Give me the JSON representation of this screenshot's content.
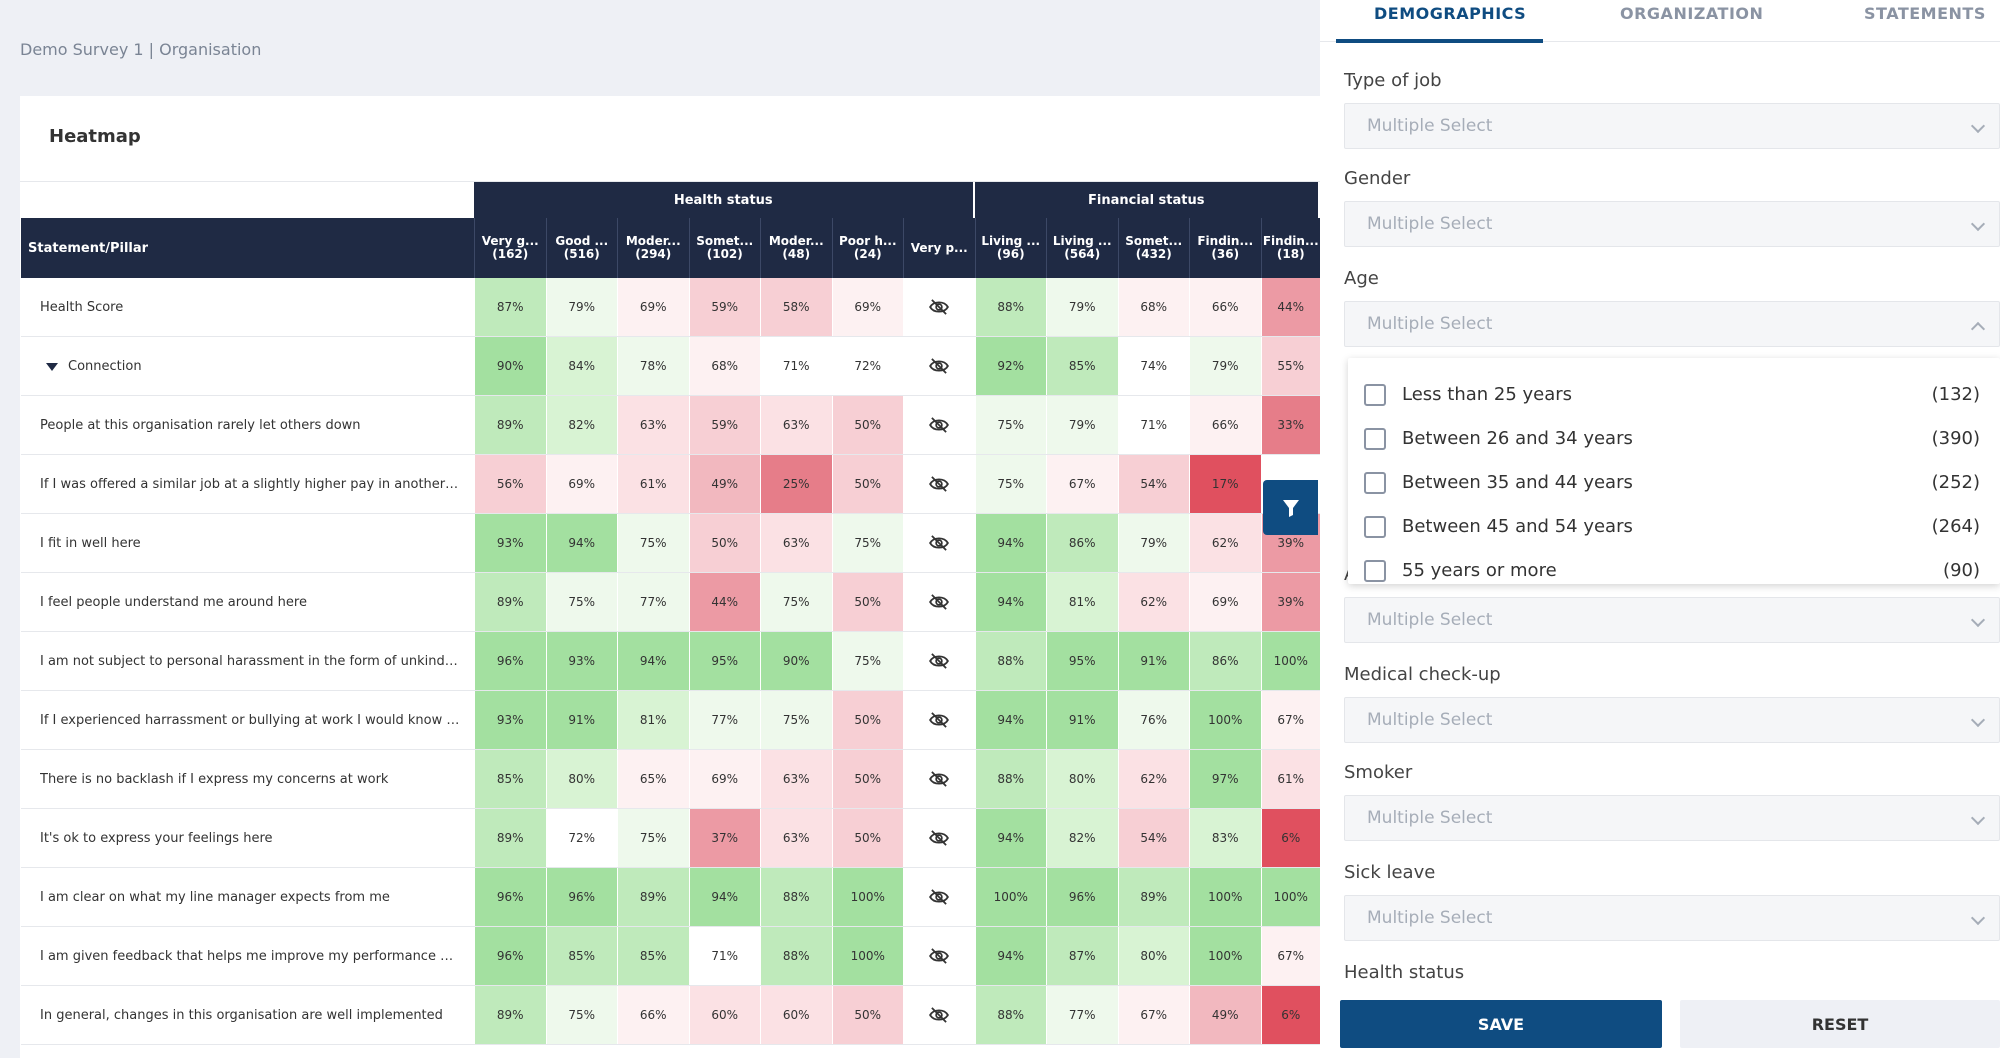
{
  "breadcrumb": "Demo Survey 1 | Organisation",
  "card_title": "Heatmap",
  "table": {
    "statement_header": "Statement/Pillar",
    "groups": [
      {
        "label": "Health status"
      },
      {
        "label": "Financial status"
      }
    ],
    "columns": [
      {
        "name": "Very g...",
        "count": "(162)"
      },
      {
        "name": "Good ...",
        "count": "(516)"
      },
      {
        "name": "Moder...",
        "count": "(294)"
      },
      {
        "name": "Somet...",
        "count": "(102)"
      },
      {
        "name": "Moder...",
        "count": "(48)"
      },
      {
        "name": "Poor h...",
        "count": "(24)"
      },
      {
        "name": "Very p...",
        "count": ""
      },
      {
        "name": "Living ...",
        "count": "(96)"
      },
      {
        "name": "Living ...",
        "count": "(564)"
      },
      {
        "name": "Somet...",
        "count": "(432)"
      },
      {
        "name": "Findin...",
        "count": "(36)"
      },
      {
        "name": "Findin...",
        "count": "(18)"
      }
    ],
    "rows": [
      {
        "label": "Health Score",
        "pillar": false,
        "values": [
          87,
          79,
          69,
          59,
          58,
          69,
          null,
          88,
          79,
          68,
          66,
          44
        ]
      },
      {
        "label": "Connection",
        "pillar": true,
        "values": [
          90,
          84,
          78,
          68,
          71,
          72,
          null,
          92,
          85,
          74,
          79,
          55
        ]
      },
      {
        "label": "People at this organisation rarely let others down",
        "pillar": false,
        "values": [
          89,
          82,
          63,
          59,
          63,
          50,
          null,
          75,
          79,
          71,
          66,
          33
        ]
      },
      {
        "label": "If I was offered a similar job at a slightly higher pay in another orga...",
        "pillar": false,
        "values": [
          56,
          69,
          61,
          49,
          25,
          50,
          null,
          75,
          67,
          54,
          17,
          null
        ]
      },
      {
        "label": "I fit in well here",
        "pillar": false,
        "values": [
          93,
          94,
          75,
          50,
          63,
          75,
          null,
          94,
          86,
          79,
          62,
          39
        ]
      },
      {
        "label": "I feel people understand me around here",
        "pillar": false,
        "values": [
          89,
          75,
          77,
          44,
          75,
          50,
          null,
          94,
          81,
          62,
          69,
          39
        ]
      },
      {
        "label": "I am not subject to personal harassment in the form of unkind wor...",
        "pillar": false,
        "values": [
          96,
          93,
          94,
          95,
          90,
          75,
          null,
          88,
          95,
          91,
          86,
          100
        ]
      },
      {
        "label": "If I experienced harrassment or bullying at work I would know how...",
        "pillar": false,
        "values": [
          93,
          91,
          81,
          77,
          75,
          50,
          null,
          94,
          91,
          76,
          100,
          67
        ]
      },
      {
        "label": "There is no backlash if I express my concerns at work",
        "pillar": false,
        "values": [
          85,
          80,
          65,
          69,
          63,
          50,
          null,
          88,
          80,
          62,
          97,
          61
        ]
      },
      {
        "label": "It's ok to express your feelings here",
        "pillar": false,
        "values": [
          89,
          72,
          75,
          37,
          63,
          50,
          null,
          94,
          82,
          54,
          83,
          6
        ]
      },
      {
        "label": "I am clear on what my line manager expects from me",
        "pillar": false,
        "values": [
          96,
          96,
          89,
          94,
          88,
          100,
          null,
          100,
          96,
          89,
          100,
          100
        ]
      },
      {
        "label": "I am given feedback that helps me improve my performance at work",
        "pillar": false,
        "values": [
          96,
          85,
          85,
          71,
          88,
          100,
          null,
          94,
          87,
          80,
          100,
          67
        ]
      },
      {
        "label": "In general, changes in this organisation are well implemented",
        "pillar": false,
        "values": [
          89,
          75,
          66,
          60,
          60,
          50,
          null,
          88,
          77,
          67,
          49,
          6
        ]
      }
    ],
    "hidden_icon": "eye-off-icon"
  },
  "filter_icon": "filter-icon",
  "panel": {
    "tabs": [
      "DEMOGRAPHICS",
      "ORGANIZATION",
      "STATEMENTS"
    ],
    "active_tab": "DEMOGRAPHICS",
    "placeholder": "Multiple Select",
    "filters": [
      {
        "label": "Type of job"
      },
      {
        "label": "Gender"
      },
      {
        "label": "Age"
      },
      {
        "label": "Alcohol"
      },
      {
        "label": "Medical check-up"
      },
      {
        "label": "Smoker"
      },
      {
        "label": "Sick leave"
      },
      {
        "label": "Health status"
      }
    ],
    "age_options": [
      {
        "label": "Less than 25 years",
        "count": "(132)"
      },
      {
        "label": "Between 26 and 34 years",
        "count": "(390)"
      },
      {
        "label": "Between 35 and 44 years",
        "count": "(252)"
      },
      {
        "label": "Between 45 and 54 years",
        "count": "(264)"
      },
      {
        "label": "55 years or more",
        "count": "(90)"
      }
    ],
    "save_label": "SAVE",
    "reset_label": "RESET"
  },
  "colors": {
    "header_navy": "#1f2a44",
    "primary_blue": "#0f4c81"
  }
}
